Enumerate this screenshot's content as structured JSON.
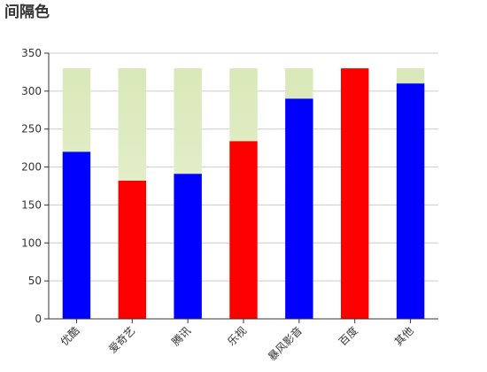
{
  "title": "间隔色",
  "chart_data": {
    "type": "bar",
    "title": "间隔色",
    "categories": [
      "优酷",
      "爱奇艺",
      "腾讯",
      "乐视",
      "暴风影音",
      "百度",
      "其他"
    ],
    "series": [
      {
        "values": [
          220,
          182,
          191,
          234,
          290,
          330,
          310
        ],
        "colors": [
          "#0000ff",
          "#ff0000",
          "#0000ff",
          "#ff0000",
          "#0000ff",
          "#ff0000",
          "#0000ff"
        ]
      }
    ],
    "background_value": 330,
    "background_color": "#dde9c0",
    "ylim": [
      0,
      350
    ],
    "yticks": [
      0,
      50,
      100,
      150,
      200,
      250,
      300,
      350
    ],
    "grid": true,
    "legend": "none"
  }
}
